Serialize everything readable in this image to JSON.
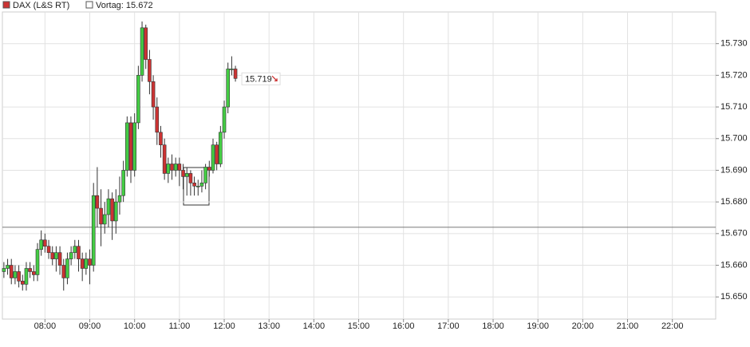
{
  "chart_data": {
    "type": "candlestick",
    "legend": [
      "DAX (L&S RT)",
      "Vortag: 15.672"
    ],
    "reference_value": 15672,
    "last_price": 15719,
    "last_price_label": "15.719",
    "x": [
      425,
      430,
      435,
      440,
      445,
      450,
      455,
      460,
      465,
      470,
      475,
      480,
      485,
      490,
      495,
      500,
      505,
      510,
      515,
      520,
      525,
      530,
      535,
      540,
      545,
      550,
      555,
      560,
      565,
      570,
      575,
      580,
      585,
      590,
      595,
      600,
      605,
      610,
      615,
      620,
      625,
      630,
      635,
      640,
      645,
      650,
      655,
      660,
      665,
      670,
      675,
      680,
      685,
      690,
      695,
      700,
      705,
      710,
      715,
      720,
      725,
      730,
      735
    ],
    "open": [
      15658,
      15659,
      15660,
      15656,
      15658,
      15655,
      15654,
      15659,
      15658,
      15657,
      15665,
      15668,
      15666,
      15664,
      15662,
      15664,
      15660,
      15656,
      15662,
      15664,
      15666,
      15662,
      15659,
      15662,
      15660,
      15682,
      15678,
      15673,
      15676,
      15681,
      15674,
      15680,
      15682,
      15690,
      15705,
      15690,
      15705,
      15720,
      15735,
      15725,
      15718,
      15710,
      15702,
      15698,
      15689,
      15692,
      15690,
      15692,
      15690,
      15688,
      15689,
      15686,
      15685,
      15685,
      15686,
      15691,
      15690,
      15698,
      15692,
      15702,
      15710,
      15722,
      15722
    ],
    "high": [
      15661,
      15662,
      15662,
      15660,
      15660,
      15657,
      15661,
      15661,
      15660,
      15667,
      15671,
      15670,
      15668,
      15666,
      15666,
      15666,
      15662,
      15664,
      15666,
      15668,
      15668,
      15664,
      15664,
      15665,
      15686,
      15691,
      15684,
      15680,
      15684,
      15683,
      15684,
      15688,
      15693,
      15707,
      15707,
      15708,
      15723,
      15737,
      15736,
      15728,
      15720,
      15713,
      15704,
      15700,
      15694,
      15695,
      15694,
      15694,
      15692,
      15691,
      15690,
      15688,
      15687,
      15690,
      15692,
      15693,
      15700,
      15699,
      15704,
      15712,
      15724,
      15726,
      15723
    ],
    "low": [
      15656,
      15657,
      15654,
      15654,
      15653,
      15652,
      15652,
      15656,
      15655,
      15655,
      15663,
      15664,
      15662,
      15660,
      15658,
      15657,
      15652,
      15654,
      15660,
      15662,
      15658,
      15655,
      15657,
      15654,
      15658,
      15672,
      15666,
      15670,
      15672,
      15668,
      15670,
      15676,
      15680,
      15688,
      15686,
      15688,
      15703,
      15718,
      15722,
      15714,
      15706,
      15698,
      15694,
      15687,
      15686,
      15687,
      15688,
      15685,
      15684,
      15682,
      15682,
      15682,
      15682,
      15683,
      15684,
      15688,
      15689,
      15690,
      15691,
      15700,
      15708,
      15720,
      15718
    ],
    "close": [
      15659,
      15660,
      15656,
      15658,
      15655,
      15654,
      15659,
      15658,
      15657,
      15665,
      15668,
      15666,
      15664,
      15662,
      15664,
      15660,
      15656,
      15662,
      15664,
      15666,
      15662,
      15659,
      15662,
      15660,
      15682,
      15678,
      15673,
      15676,
      15681,
      15674,
      15680,
      15682,
      15690,
      15705,
      15690,
      15705,
      15720,
      15735,
      15725,
      15718,
      15710,
      15702,
      15698,
      15689,
      15692,
      15690,
      15692,
      15690,
      15688,
      15689,
      15686,
      15685,
      15685,
      15686,
      15691,
      15690,
      15698,
      15692,
      15702,
      15710,
      15722,
      15722,
      15719
    ],
    "up_color": "#44cc44",
    "down_color": "#cc3333",
    "grid": true,
    "xlim": [
      423,
      1378
    ],
    "xticks": [
      {
        "value": 480,
        "label": "08:00"
      },
      {
        "value": 540,
        "label": "09:00"
      },
      {
        "value": 600,
        "label": "10:00"
      },
      {
        "value": 660,
        "label": "11:00"
      },
      {
        "value": 720,
        "label": "12:00"
      },
      {
        "value": 780,
        "label": "13:00"
      },
      {
        "value": 840,
        "label": "14:00"
      },
      {
        "value": 900,
        "label": "15:00"
      },
      {
        "value": 960,
        "label": "16:00"
      },
      {
        "value": 1020,
        "label": "17:00"
      },
      {
        "value": 1080,
        "label": "18:00"
      },
      {
        "value": 1140,
        "label": "19:00"
      },
      {
        "value": 1200,
        "label": "20:00"
      },
      {
        "value": 1260,
        "label": "21:00"
      },
      {
        "value": 1320,
        "label": "22:00"
      }
    ],
    "ylim": [
      15643,
      15740
    ],
    "yticks": [
      {
        "value": 15650,
        "label": "15.650"
      },
      {
        "value": 15660,
        "label": "15.660"
      },
      {
        "value": 15670,
        "label": "15.670"
      },
      {
        "value": 15680,
        "label": "15.680"
      },
      {
        "value": 15690,
        "label": "15.690"
      },
      {
        "value": 15700,
        "label": "15.700"
      },
      {
        "value": 15710,
        "label": "15.710"
      },
      {
        "value": 15720,
        "label": "15.720"
      },
      {
        "value": 15730,
        "label": "15.730"
      }
    ]
  }
}
